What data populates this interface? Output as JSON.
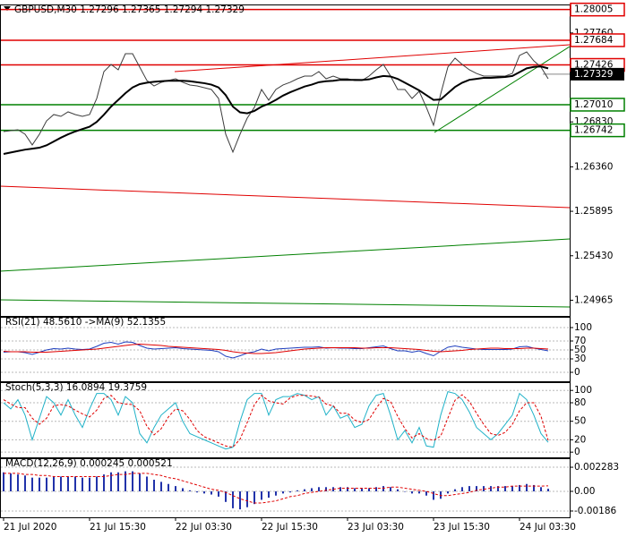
{
  "chart_data": [
    {
      "type": "line",
      "title": "GBPUSD,M30  1.27296 1.27365 1.27294 1.27329",
      "categories": [
        "21 Jul 2020",
        null,
        null,
        null,
        null,
        null,
        null,
        null,
        null,
        null,
        null,
        null,
        "21 Jul 15:30",
        null,
        null,
        null,
        null,
        null,
        null,
        null,
        null,
        null,
        null,
        null,
        "22 Jul 03:30",
        null,
        null,
        null,
        null,
        null,
        null,
        null,
        null,
        null,
        null,
        null,
        "22 Jul 15:30",
        null,
        null,
        null,
        null,
        null,
        null,
        null,
        null,
        null,
        null,
        null,
        "23 Jul 03:30",
        null,
        null,
        null,
        null,
        null,
        null,
        null,
        null,
        null,
        null,
        null,
        "23 Jul 15:30",
        null,
        null,
        null,
        null,
        null,
        null,
        null,
        null,
        null,
        null,
        null,
        "24 Jul 03:30",
        null,
        null,
        null,
        null
      ],
      "series": [
        {
          "color": "#3c3c3c",
          "width": 1,
          "values": [
            1.26729,
            1.26738,
            1.26748,
            1.26701,
            1.26589,
            1.26701,
            1.26841,
            1.26907,
            1.26888,
            1.26935,
            1.26907,
            1.26888,
            1.26907,
            1.27075,
            1.27356,
            1.27431,
            1.27375,
            1.27543,
            1.27543,
            1.27403,
            1.27263,
            1.27206,
            1.27244,
            1.27263,
            1.27281,
            1.27244,
            1.27216,
            1.27206,
            1.27188,
            1.27169,
            1.27075,
            1.26701,
            1.26514,
            1.26701,
            1.26869,
            1.26982,
            1.27169,
            1.27057,
            1.27169,
            1.27216,
            1.27244,
            1.27281,
            1.27309,
            1.27309,
            1.27356,
            1.27281,
            1.27309,
            1.27281,
            1.27281,
            1.27263,
            1.27263,
            1.27309,
            1.27375,
            1.27431,
            1.27309,
            1.27169,
            1.27169,
            1.27075,
            1.2715,
            1.26982,
            1.26795,
            1.27122,
            1.27403,
            1.27497,
            1.27431,
            1.27375,
            1.27337,
            1.27309,
            1.27309,
            1.27309,
            1.27309,
            1.27337,
            1.27525,
            1.27562,
            1.27468,
            1.27403,
            1.27281
          ]
        },
        {
          "color": "#000000",
          "width": 2,
          "values": [
            1.26495,
            1.2651,
            1.26525,
            1.2654,
            1.2655,
            1.2656,
            1.26585,
            1.26625,
            1.26665,
            1.267,
            1.2673,
            1.26755,
            1.2678,
            1.2683,
            1.26905,
            1.2699,
            1.2706,
            1.2713,
            1.2719,
            1.27225,
            1.2724,
            1.2725,
            1.27255,
            1.2726,
            1.2726,
            1.2726,
            1.27255,
            1.27245,
            1.27235,
            1.2722,
            1.2719,
            1.2711,
            1.2699,
            1.2693,
            1.2692,
            1.26945,
            1.2699,
            1.2702,
            1.2706,
            1.27105,
            1.2714,
            1.2717,
            1.272,
            1.2722,
            1.27245,
            1.27255,
            1.2726,
            1.2727,
            1.2727,
            1.2727,
            1.27268,
            1.27275,
            1.27295,
            1.2731,
            1.27305,
            1.2728,
            1.2724,
            1.272,
            1.2716,
            1.2711,
            1.2706,
            1.27065,
            1.2713,
            1.27195,
            1.2724,
            1.2727,
            1.2728,
            1.2729,
            1.2729,
            1.27295,
            1.273,
            1.2731,
            1.2735,
            1.2739,
            1.27405,
            1.2741,
            1.2739
          ]
        }
      ],
      "ylim": [
        1.2481,
        1.2803
      ],
      "yticks": [
        {
          "value": 1.2776,
          "label": "1.27760"
        },
        {
          "value": 1.2683,
          "label": "1.26830"
        },
        {
          "value": 1.2636,
          "label": "1.26360"
        },
        1.25895,
        {
          "value": 1.2543,
          "label": "1.25430"
        },
        1.24965
      ],
      "levels": [
        {
          "value": 1.28005,
          "label": "1.28005",
          "color": "#e00000"
        },
        {
          "value": 1.27684,
          "label": "1.27684",
          "color": "#e00000"
        },
        {
          "value": 1.27426,
          "label": "1.27426",
          "color": "#e00000"
        },
        {
          "value": 1.2701,
          "label": "1.27010",
          "color": "#008000"
        },
        {
          "value": 1.26742,
          "label": "1.26742",
          "color": "#008000"
        }
      ],
      "last_price": {
        "value": 1.27329,
        "label": "1.27329"
      },
      "grid": false
    },
    {
      "type": "line",
      "title": "RSI(21) 48.5610  ->MA(9) 52.1355",
      "series": [
        {
          "color": "#1f3fbf",
          "width": 1,
          "values": [
            45,
            46,
            46,
            44,
            40,
            45,
            50,
            53,
            52,
            54,
            52,
            51,
            52,
            58,
            65,
            67,
            63,
            68,
            67,
            60,
            54,
            52,
            53,
            54,
            55,
            53,
            52,
            51,
            50,
            49,
            46,
            36,
            32,
            37,
            43,
            46,
            52,
            48,
            52,
            53,
            54,
            55,
            56,
            56,
            57,
            54,
            55,
            54,
            54,
            53,
            53,
            55,
            57,
            59,
            53,
            48,
            48,
            45,
            48,
            42,
            37,
            47,
            56,
            59,
            56,
            54,
            52,
            51,
            51,
            51,
            51,
            52,
            57,
            58,
            54,
            51,
            48
          ]
        },
        {
          "color": "#e00000",
          "width": 1,
          "values": [
            47,
            46,
            46,
            46,
            45,
            45,
            45,
            46,
            47,
            48,
            49,
            50,
            51,
            52,
            54,
            56,
            58,
            60,
            62,
            63,
            62,
            61,
            60,
            58,
            57,
            56,
            55,
            54,
            53,
            52,
            51,
            49,
            46,
            44,
            43,
            42,
            42,
            43,
            44,
            46,
            48,
            50,
            52,
            53,
            54,
            55,
            55,
            55,
            55,
            55,
            54,
            54,
            55,
            55,
            55,
            54,
            53,
            52,
            51,
            49,
            47,
            46,
            47,
            48,
            49,
            51,
            52,
            53,
            54,
            54,
            53,
            53,
            53,
            54,
            54,
            53,
            52
          ]
        }
      ],
      "ylim": [
        -18,
        118
      ],
      "yticks": [
        100,
        70,
        50,
        30,
        0
      ],
      "grid": true
    },
    {
      "type": "line",
      "title": "Stoch(5,3,3) 16.0894 19.3759",
      "series": [
        {
          "color": "#20b2c8",
          "width": 1,
          "values": [
            80,
            70,
            85,
            60,
            20,
            55,
            90,
            80,
            60,
            85,
            60,
            40,
            70,
            95,
            95,
            85,
            60,
            90,
            80,
            30,
            15,
            40,
            60,
            70,
            80,
            50,
            30,
            25,
            20,
            15,
            10,
            5,
            8,
            50,
            85,
            95,
            95,
            60,
            85,
            90,
            90,
            95,
            92,
            85,
            90,
            60,
            75,
            55,
            60,
            40,
            45,
            75,
            92,
            95,
            60,
            20,
            35,
            15,
            40,
            10,
            8,
            60,
            98,
            95,
            85,
            65,
            40,
            30,
            20,
            30,
            45,
            60,
            95,
            85,
            60,
            30,
            16
          ]
        },
        {
          "color": "#e00000",
          "width": 1,
          "dash": true,
          "values": [
            85,
            78,
            72,
            72,
            55,
            45,
            55,
            75,
            77,
            75,
            68,
            62,
            57,
            68,
            87,
            92,
            80,
            78,
            77,
            67,
            42,
            28,
            38,
            57,
            70,
            67,
            53,
            35,
            25,
            20,
            15,
            10,
            8,
            21,
            48,
            77,
            92,
            83,
            80,
            78,
            88,
            92,
            92,
            91,
            89,
            78,
            75,
            63,
            63,
            52,
            48,
            53,
            71,
            87,
            82,
            58,
            38,
            23,
            30,
            22,
            19,
            26,
            55,
            84,
            93,
            82,
            63,
            45,
            30,
            27,
            32,
            45,
            67,
            80,
            80,
            58,
            19
          ]
        }
      ],
      "ylim": [
        -7,
        109
      ],
      "yticks": [
        100,
        80,
        50,
        20,
        0
      ],
      "grid": true
    },
    {
      "type": "line",
      "title": "MACD(12,26,9) 0.000245 0.000521",
      "series": [
        {
          "type": "bar",
          "color": "#2233aa",
          "values": [
            0.0018,
            0.0017,
            0.0016,
            0.0015,
            0.0013,
            0.0013,
            0.0013,
            0.0014,
            0.0014,
            0.0014,
            0.0014,
            0.0013,
            0.0013,
            0.0014,
            0.0016,
            0.0018,
            0.0018,
            0.0019,
            0.0019,
            0.0017,
            0.0014,
            0.0011,
            0.0009,
            0.0007,
            0.0005,
            0.0003,
            0.0001,
            -0.0001,
            -0.0002,
            -0.0003,
            -0.0005,
            -0.001,
            -0.0016,
            -0.0017,
            -0.0015,
            -0.0012,
            -0.0008,
            -0.0006,
            -0.0004,
            -0.0002,
            -0.0001,
            0.0001,
            0.0002,
            0.0003,
            0.0004,
            0.0004,
            0.0004,
            0.0004,
            0.0004,
            0.0003,
            0.0003,
            0.0003,
            0.0004,
            0.0005,
            0.0004,
            0.0002,
            0,
            -0.0002,
            -0.0002,
            -0.0004,
            -0.0008,
            -0.0007,
            -0.0002,
            0.0002,
            0.0004,
            0.0005,
            0.0005,
            0.0005,
            0.0005,
            0.0005,
            0.0005,
            0.0005,
            0.0006,
            0.0007,
            0.0006,
            0.0004,
            0.000245
          ]
        },
        {
          "color": "#e00000",
          "width": 1,
          "dash": true,
          "values": [
            0.0017,
            0.0017,
            0.0017,
            0.0016,
            0.0016,
            0.0015,
            0.0015,
            0.0014,
            0.0014,
            0.0014,
            0.0014,
            0.0014,
            0.0014,
            0.0014,
            0.0014,
            0.0015,
            0.0016,
            0.0016,
            0.0017,
            0.0017,
            0.0017,
            0.0016,
            0.0015,
            0.0013,
            0.0012,
            0.001,
            0.0008,
            0.0006,
            0.0004,
            0.0002,
            0.0001,
            -0.0001,
            -0.0004,
            -0.0007,
            -0.0009,
            -0.0011,
            -0.0011,
            -0.001,
            -0.0009,
            -0.0007,
            -0.0005,
            -0.0004,
            -0.0002,
            -0.0001,
            0,
            0.0001,
            0.0002,
            0.0003,
            0.0003,
            0.0003,
            0.0003,
            0.0003,
            0.0003,
            0.0003,
            0.0004,
            0.0004,
            0.0003,
            0.0002,
            0.0001,
            0,
            -0.0002,
            -0.0004,
            -0.0004,
            -0.0003,
            -0.0002,
            -0.0001,
            0.0001,
            0.0002,
            0.0003,
            0.0004,
            0.0004,
            0.0005,
            0.0005,
            0.0005,
            0.0005,
            0.0005,
            0.000521
          ]
        }
      ],
      "ylim": [
        -0.00237,
        0.00288
      ],
      "yticks": [
        0.002283,
        {
          "value": 0,
          "label": "0.00"
        },
        -0.00186
      ],
      "grid": true
    }
  ]
}
